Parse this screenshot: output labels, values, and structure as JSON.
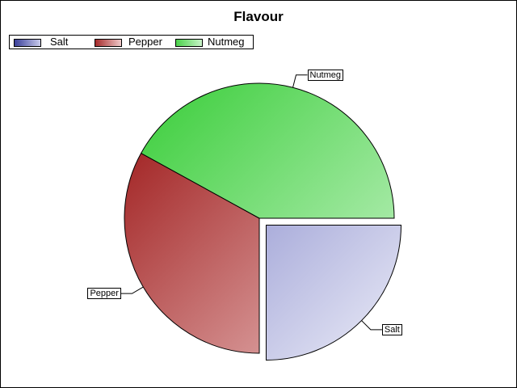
{
  "chart_data": {
    "type": "pie",
    "title": "Flavour",
    "legend_position": "top-left",
    "slices": [
      {
        "label": "Salt",
        "value": 25,
        "color_dark": "#7b7fc6",
        "color_light": "#e8e9f6",
        "exploded": true
      },
      {
        "label": "Pepper",
        "value": 33,
        "color_dark": "#a52a2a",
        "color_light": "#e8bcbc",
        "exploded": false
      },
      {
        "label": "Nutmeg",
        "value": 42,
        "color_dark": "#4bd24b",
        "color_light": "#c9f3c9",
        "exploded": false
      }
    ]
  }
}
